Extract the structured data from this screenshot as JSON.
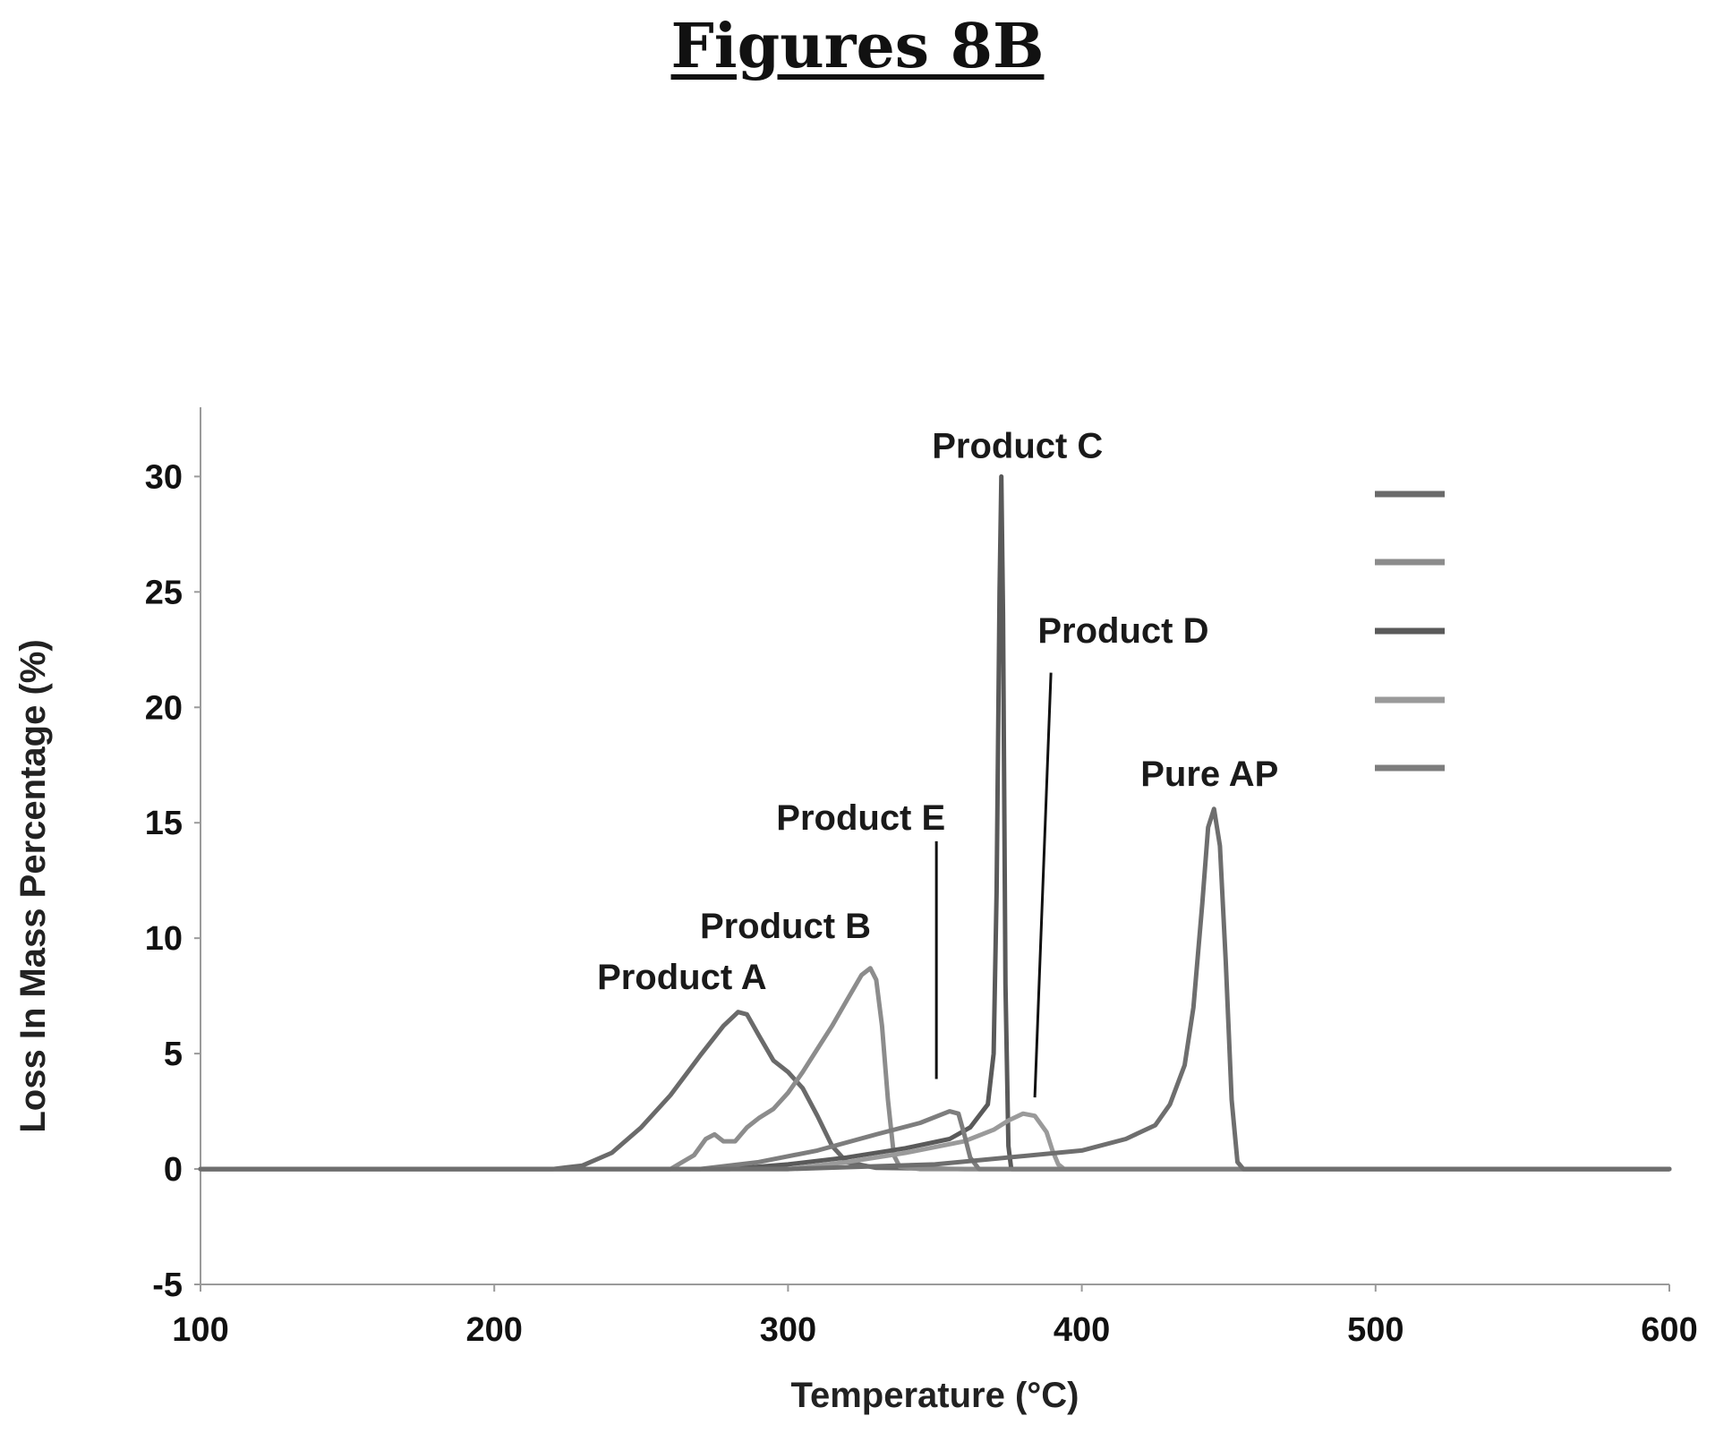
{
  "figure_title": "Figures 8B",
  "chart_data": {
    "type": "line",
    "xlabel": "Temperature (°C)",
    "ylabel": "Loss In Mass Percentage (%)",
    "xlim": [
      100,
      600
    ],
    "ylim": [
      -5,
      33
    ],
    "xticks": [
      100,
      200,
      300,
      400,
      500,
      600
    ],
    "yticks": [
      -5,
      0,
      5,
      10,
      15,
      20,
      25,
      30
    ],
    "grid": false,
    "legend": "right, swatches only (no legend text visible)",
    "series": [
      {
        "name": "Product A",
        "color": "#6a6a6a",
        "x": [
          100,
          220,
          230,
          240,
          250,
          260,
          270,
          278,
          283,
          286,
          290,
          295,
          300,
          305,
          310,
          315,
          320,
          330,
          360,
          450,
          600
        ],
        "y": [
          0,
          0,
          0.15,
          0.7,
          1.8,
          3.2,
          4.9,
          6.2,
          6.8,
          6.7,
          5.8,
          4.7,
          4.2,
          3.5,
          2.3,
          1.0,
          0.3,
          0.05,
          0,
          0,
          0
        ]
      },
      {
        "name": "Product B",
        "color": "#8c8c8c",
        "x": [
          100,
          260,
          268,
          272,
          275,
          278,
          282,
          286,
          290,
          295,
          300,
          305,
          310,
          315,
          320,
          325,
          328,
          330,
          332,
          334,
          336,
          338,
          345,
          600
        ],
        "y": [
          0,
          0,
          0.6,
          1.3,
          1.5,
          1.2,
          1.2,
          1.8,
          2.2,
          2.6,
          3.3,
          4.2,
          5.2,
          6.2,
          7.3,
          8.4,
          8.7,
          8.2,
          6.2,
          3.0,
          0.6,
          0.1,
          0,
          0
        ]
      },
      {
        "name": "Product C",
        "color": "#5a5a5a",
        "x": [
          100,
          280,
          300,
          320,
          340,
          355,
          362,
          368,
          370,
          371,
          372,
          372.6,
          373.2,
          374,
          375,
          376,
          400,
          600
        ],
        "y": [
          0,
          0,
          0.2,
          0.5,
          0.9,
          1.3,
          1.8,
          2.8,
          5.0,
          12.0,
          25.0,
          30.0,
          24.0,
          8.0,
          1.0,
          0,
          0,
          0
        ]
      },
      {
        "name": "Product D",
        "color": "#9a9a9a",
        "x": [
          100,
          300,
          320,
          340,
          360,
          370,
          375,
          380,
          384,
          388,
          390,
          392,
          394,
          400,
          600
        ],
        "y": [
          0,
          0,
          0.3,
          0.7,
          1.2,
          1.7,
          2.1,
          2.4,
          2.3,
          1.6,
          0.8,
          0.2,
          0,
          0,
          0
        ]
      },
      {
        "name": "Product E",
        "color": "#7d7d7d",
        "x": [
          100,
          270,
          290,
          310,
          330,
          345,
          355,
          358,
          360,
          362,
          365,
          370,
          600
        ],
        "y": [
          0,
          0,
          0.3,
          0.8,
          1.5,
          2.0,
          2.5,
          2.4,
          1.5,
          0.5,
          0,
          0,
          0
        ]
      },
      {
        "name": "Pure AP",
        "color": "#6e6e6e",
        "x": [
          100,
          300,
          350,
          400,
          415,
          425,
          430,
          435,
          438,
          441,
          443,
          445,
          447,
          449,
          451,
          453,
          455,
          470,
          600
        ],
        "y": [
          0,
          0,
          0.2,
          0.8,
          1.3,
          1.9,
          2.8,
          4.5,
          7.0,
          11.5,
          14.8,
          15.6,
          14.0,
          9.0,
          3.0,
          0.3,
          0,
          0,
          0
        ]
      }
    ],
    "annotations": [
      {
        "text": "Product A",
        "x": 235,
        "y": 7.8
      },
      {
        "text": "Product B",
        "x": 270,
        "y": 10.0
      },
      {
        "text": "Product E",
        "x": 296,
        "y": 14.7
      },
      {
        "text": "Product C",
        "x": 349,
        "y": 30.8
      },
      {
        "text": "Product D",
        "x": 385,
        "y": 22.8
      },
      {
        "text": "Pure AP",
        "x": 420,
        "y": 16.6
      }
    ]
  }
}
